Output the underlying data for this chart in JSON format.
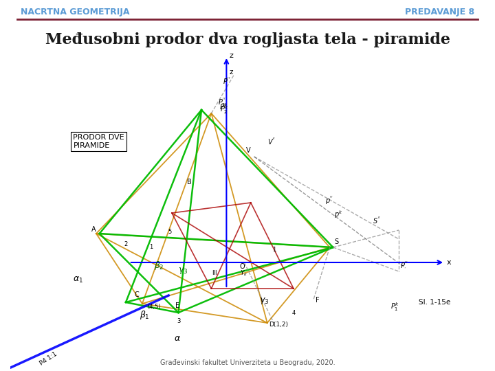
{
  "header_left": "NACRTNA GEOMETRIJA",
  "header_right": "PREDAVANJE 8",
  "title": "Međusobni prodor dva rogljasta tela - piramide",
  "footer": "Građevinski fakultet Univerziteta u Beogradu, 2020.",
  "header_color": "#5B9BD5",
  "header_line_color": "#7B2033",
  "bg_color": "#FFFFFF",
  "title_color": "#1a1a1a",
  "footer_color": "#555555",
  "slide_label": "Sl. 1-15e",
  "label_prodor": "PRODOR DVE\nPIRAMIDE",
  "label_p4": "P4 1:1",
  "number_labels": [
    [
      "1",
      213,
      360
    ],
    [
      "2",
      175,
      355
    ],
    [
      "3",
      255,
      468
    ],
    [
      "4",
      430,
      455
    ],
    [
      "5",
      242,
      338
    ],
    [
      "1",
      400,
      363
    ],
    [
      "III",
      310,
      398
    ],
    [
      "(4,5)",
      218,
      446
    ]
  ]
}
